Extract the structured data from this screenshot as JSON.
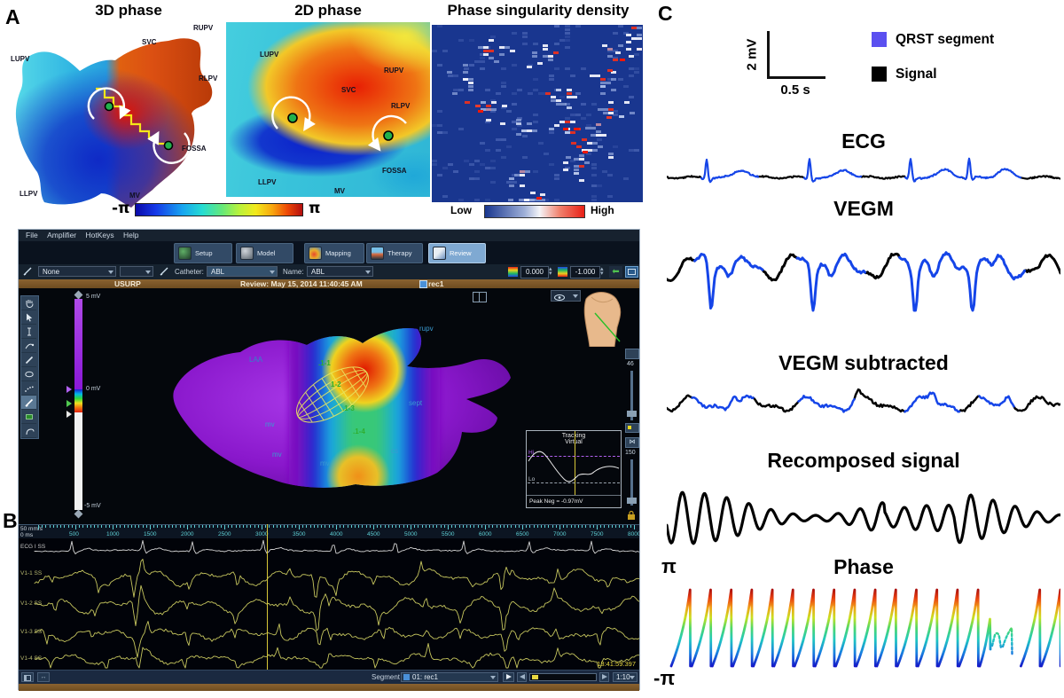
{
  "panel_a": {
    "label": "A",
    "title_3d": "3D phase",
    "title_2d": "2D phase",
    "title_density": "Phase singularity density",
    "anatomy": {
      "lupv": "LUPV",
      "svc": "SVC",
      "rupv": "RUPV",
      "rlpv": "RLPV",
      "fossa": "FOSSA",
      "llpv": "LLPV",
      "mv": "MV"
    },
    "colorbar": {
      "min": "-π",
      "max": "π"
    },
    "density_scale": {
      "low": "Low",
      "high": "High"
    }
  },
  "panel_b": {
    "label": "B",
    "menu": [
      "File",
      "Amplifier",
      "HotKeys",
      "Help"
    ],
    "tabs": [
      "Setup",
      "Model",
      "Mapping",
      "Therapy",
      "Review"
    ],
    "toolbar": {
      "map_select": "None",
      "catheter_label": "Catheter:",
      "catheter_value": "ABL",
      "name_label": "Name:",
      "name_value": "ABL",
      "high_value": "0.000",
      "low_value": "-1.000"
    },
    "status_bar": {
      "map_name": "USURP",
      "review_info": "Review: May 15, 2014 11:40:45 AM",
      "record_name": "rec1"
    },
    "color_scale": {
      "top": "5 mV",
      "mid": "0 mV",
      "bottom": "-5 mV"
    },
    "grid_labels": {
      "g1": ".1-1",
      "g2": "1-2",
      "g3": ".1-3",
      "g4": ".1-4"
    },
    "anatomy_labels": {
      "rupv": "rupv",
      "laa": "LAA",
      "sept": "sept",
      "mv": "mv",
      "cs": "cs"
    },
    "right_controls": {
      "fill_value": "46",
      "size_value": "150"
    },
    "inset": {
      "title_line1": "Tracking",
      "title_line2": "Virtual",
      "hi": "Hi",
      "lo": "Lo",
      "peak_neg": "Peak Neg = -0.97mV"
    },
    "ruler": {
      "speed": "50 mm/s",
      "origin": "0 ms",
      "ticks": [
        "500",
        "1000",
        "1500",
        "2000",
        "2500",
        "3000",
        "3500",
        "4000",
        "4500",
        "5000",
        "5500",
        "6000",
        "6500",
        "7000",
        "7500",
        "8000"
      ]
    },
    "trace_labels": [
      "ECG I SS",
      "V1-1 SS",
      "V1-2 SS",
      "V1-3 SS",
      "V1-4 SS"
    ],
    "timestamp": "13:41:59.397",
    "transport": {
      "segment_label": "Segment",
      "segment_value": "01: rec1",
      "scale_value": "1:10"
    }
  },
  "panel_c": {
    "label": "C",
    "scalebar": {
      "vertical": "2 mV",
      "horizontal": "0.5 s"
    },
    "legend": {
      "qrst": "QRST segment",
      "signal": "Signal"
    },
    "sections": [
      "ECG",
      "VEGM",
      "VEGM subtracted",
      "Recomposed signal",
      "Phase"
    ],
    "phase_axis": {
      "max": "π",
      "min": "-π"
    }
  },
  "colors": {
    "qrst_legend": "#5b50f0",
    "qrst_trace": "#1545e8",
    "signal": "#000000",
    "density_background": "#19368f",
    "app_brown": "#7d5a28",
    "active_tab": "#7fa9d2"
  }
}
